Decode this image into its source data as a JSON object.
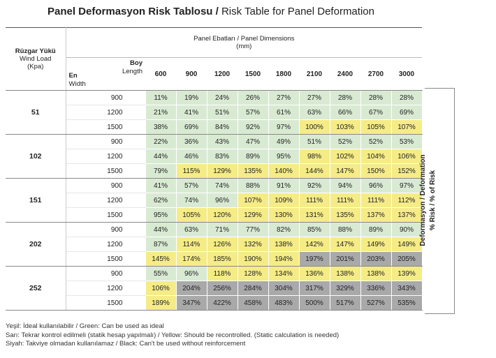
{
  "title": {
    "tr": "Panel Deformasyon Risk Tablosu /",
    "en": "Risk Table for Panel Deformation"
  },
  "header": {
    "wind_tr": "Rüzgar Yükü",
    "wind_en": "Wind Load",
    "wind_unit": "(Kpa)",
    "panel_dims": "Panel Ebatları / Panel Dimensions",
    "panel_unit": "(mm)",
    "length_tr": "Boy",
    "length_en": "Length",
    "width_tr": "En",
    "width_en": "Width"
  },
  "lengths": [
    "600",
    "900",
    "1200",
    "1500",
    "1800",
    "2100",
    "2400",
    "2700",
    "3000"
  ],
  "side_label": {
    "line1": "Deformasyon / Deformation",
    "line2": "% Risk  / % of Risk"
  },
  "colors": {
    "green": "#d9ead3",
    "yellow": "#f5ec86",
    "gray": "#a9a9a9"
  },
  "groups": [
    {
      "load": "51",
      "rows": [
        {
          "width": "900",
          "values": [
            "11%",
            "19%",
            "24%",
            "26%",
            "27%",
            "27%",
            "28%",
            "28%",
            "28%"
          ],
          "status": [
            "g",
            "g",
            "g",
            "g",
            "g",
            "g",
            "g",
            "g",
            "g"
          ]
        },
        {
          "width": "1200",
          "values": [
            "21%",
            "41%",
            "51%",
            "57%",
            "61%",
            "63%",
            "66%",
            "67%",
            "69%"
          ],
          "status": [
            "g",
            "g",
            "g",
            "g",
            "g",
            "g",
            "g",
            "g",
            "g"
          ]
        },
        {
          "width": "1500",
          "values": [
            "38%",
            "69%",
            "84%",
            "92%",
            "97%",
            "100%",
            "103%",
            "105%",
            "107%"
          ],
          "status": [
            "g",
            "g",
            "g",
            "g",
            "g",
            "y",
            "y",
            "y",
            "y"
          ]
        }
      ]
    },
    {
      "load": "102",
      "rows": [
        {
          "width": "900",
          "values": [
            "22%",
            "36%",
            "43%",
            "47%",
            "49%",
            "51%",
            "52%",
            "52%",
            "53%"
          ],
          "status": [
            "g",
            "g",
            "g",
            "g",
            "g",
            "g",
            "g",
            "g",
            "g"
          ]
        },
        {
          "width": "1200",
          "values": [
            "44%",
            "46%",
            "83%",
            "89%",
            "95%",
            "98%",
            "102%",
            "104%",
            "106%"
          ],
          "status": [
            "g",
            "g",
            "g",
            "g",
            "g",
            "y",
            "y",
            "y",
            "y"
          ]
        },
        {
          "width": "1500",
          "values": [
            "79%",
            "115%",
            "129%",
            "135%",
            "140%",
            "144%",
            "147%",
            "150%",
            "152%"
          ],
          "status": [
            "g",
            "y",
            "y",
            "y",
            "y",
            "y",
            "y",
            "y",
            "y"
          ]
        }
      ]
    },
    {
      "load": "151",
      "rows": [
        {
          "width": "900",
          "values": [
            "41%",
            "57%",
            "74%",
            "88%",
            "91%",
            "92%",
            "94%",
            "96%",
            "97%"
          ],
          "status": [
            "g",
            "g",
            "g",
            "g",
            "g",
            "g",
            "g",
            "g",
            "g"
          ]
        },
        {
          "width": "1200",
          "values": [
            "62%",
            "74%",
            "96%",
            "107%",
            "109%",
            "111%",
            "111%",
            "111%",
            "112%"
          ],
          "status": [
            "g",
            "g",
            "g",
            "y",
            "y",
            "y",
            "y",
            "y",
            "y"
          ]
        },
        {
          "width": "1500",
          "values": [
            "95%",
            "105%",
            "120%",
            "129%",
            "130%",
            "131%",
            "135%",
            "137%",
            "137%"
          ],
          "status": [
            "g",
            "y",
            "y",
            "y",
            "y",
            "y",
            "y",
            "y",
            "y"
          ]
        }
      ]
    },
    {
      "load": "202",
      "rows": [
        {
          "width": "900",
          "values": [
            "44%",
            "63%",
            "71%",
            "77%",
            "82%",
            "85%",
            "88%",
            "89%",
            "90%"
          ],
          "status": [
            "g",
            "g",
            "g",
            "g",
            "g",
            "g",
            "g",
            "g",
            "g"
          ]
        },
        {
          "width": "1200",
          "values": [
            "87%",
            "114%",
            "126%",
            "132%",
            "138%",
            "142%",
            "147%",
            "149%",
            "149%"
          ],
          "status": [
            "g",
            "y",
            "y",
            "y",
            "y",
            "y",
            "y",
            "y",
            "y"
          ]
        },
        {
          "width": "1500",
          "values": [
            "145%",
            "174%",
            "185%",
            "190%",
            "194%",
            "197%",
            "201%",
            "203%",
            "205%"
          ],
          "status": [
            "y",
            "y",
            "y",
            "y",
            "y",
            "k",
            "k",
            "k",
            "k"
          ]
        }
      ]
    },
    {
      "load": "252",
      "rows": [
        {
          "width": "900",
          "values": [
            "55%",
            "96%",
            "118%",
            "128%",
            "134%",
            "136%",
            "138%",
            "138%",
            "139%"
          ],
          "status": [
            "g",
            "g",
            "y",
            "y",
            "y",
            "y",
            "y",
            "y",
            "y"
          ]
        },
        {
          "width": "1200",
          "values": [
            "106%",
            "204%",
            "256%",
            "284%",
            "304%",
            "317%",
            "329%",
            "336%",
            "343%"
          ],
          "status": [
            "y",
            "k",
            "k",
            "k",
            "k",
            "k",
            "k",
            "k",
            "k"
          ]
        },
        {
          "width": "1500",
          "values": [
            "189%",
            "347%",
            "422%",
            "458%",
            "483%",
            "500%",
            "517%",
            "527%",
            "535%"
          ],
          "status": [
            "y",
            "k",
            "k",
            "k",
            "k",
            "k",
            "k",
            "k",
            "k"
          ]
        }
      ]
    }
  ],
  "legend": [
    "Yeşil: İdeal kullanılabilir / Green: Can be used as ideal",
    "Sarı: Tekrar kontrol edilmeli (statik hesap yapılmalı) / Yellow: Should be recontrolled. (Static calculation is needed)",
    "Siyah: Takviye olmadan kullanılamaz / Black: Can't be used without reinforcement"
  ]
}
